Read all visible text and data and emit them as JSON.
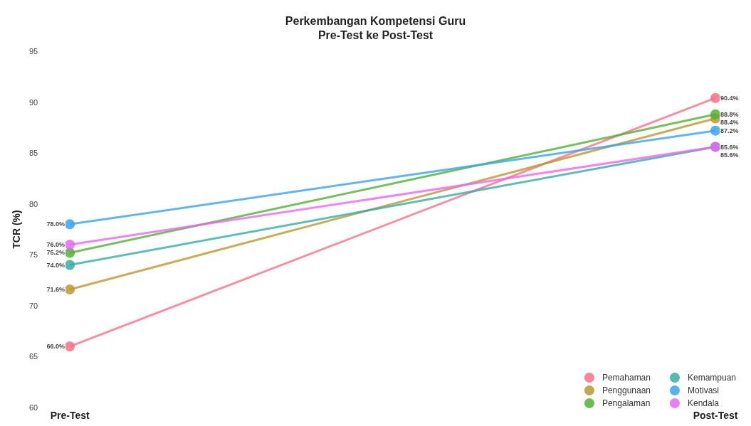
{
  "chart_data": {
    "type": "line",
    "title": "Perkembangan Kompetensi Guru\nPre-Test ke Post-Test",
    "ylabel": "TCR (%)",
    "categories": [
      "Pre-Test",
      "Post-Test"
    ],
    "series": [
      {
        "name": "Pemahaman",
        "color": "#f77189",
        "values": [
          66.0,
          90.4
        ],
        "value_labels": [
          "66.0%",
          "90.4%"
        ]
      },
      {
        "name": "Penggunaan",
        "color": "#bb9832",
        "values": [
          71.6,
          88.4
        ],
        "value_labels": [
          "71.6%",
          "88.4%"
        ]
      },
      {
        "name": "Pengalaman",
        "color": "#50b131",
        "values": [
          75.2,
          88.8
        ],
        "value_labels": [
          "75.2%",
          "88.8%"
        ]
      },
      {
        "name": "Kemampuan",
        "color": "#36ada4",
        "values": [
          74.0,
          85.6
        ],
        "value_labels": [
          "74.0%",
          "85.6%"
        ]
      },
      {
        "name": "Motivasi",
        "color": "#3ba3ec",
        "values": [
          78.0,
          87.2
        ],
        "value_labels": [
          "78.0%",
          "87.2%"
        ]
      },
      {
        "name": "Kendala",
        "color": "#e866f4",
        "values": [
          76.0,
          85.6
        ],
        "value_labels": [
          "76.0%",
          "85.6%"
        ]
      }
    ],
    "ylim": [
      60,
      95
    ],
    "yticks": [
      60,
      65,
      70,
      75,
      80,
      85,
      90,
      95
    ],
    "grid": false,
    "legend": "bottom right",
    "marker": "circle",
    "line_style": "solid"
  }
}
